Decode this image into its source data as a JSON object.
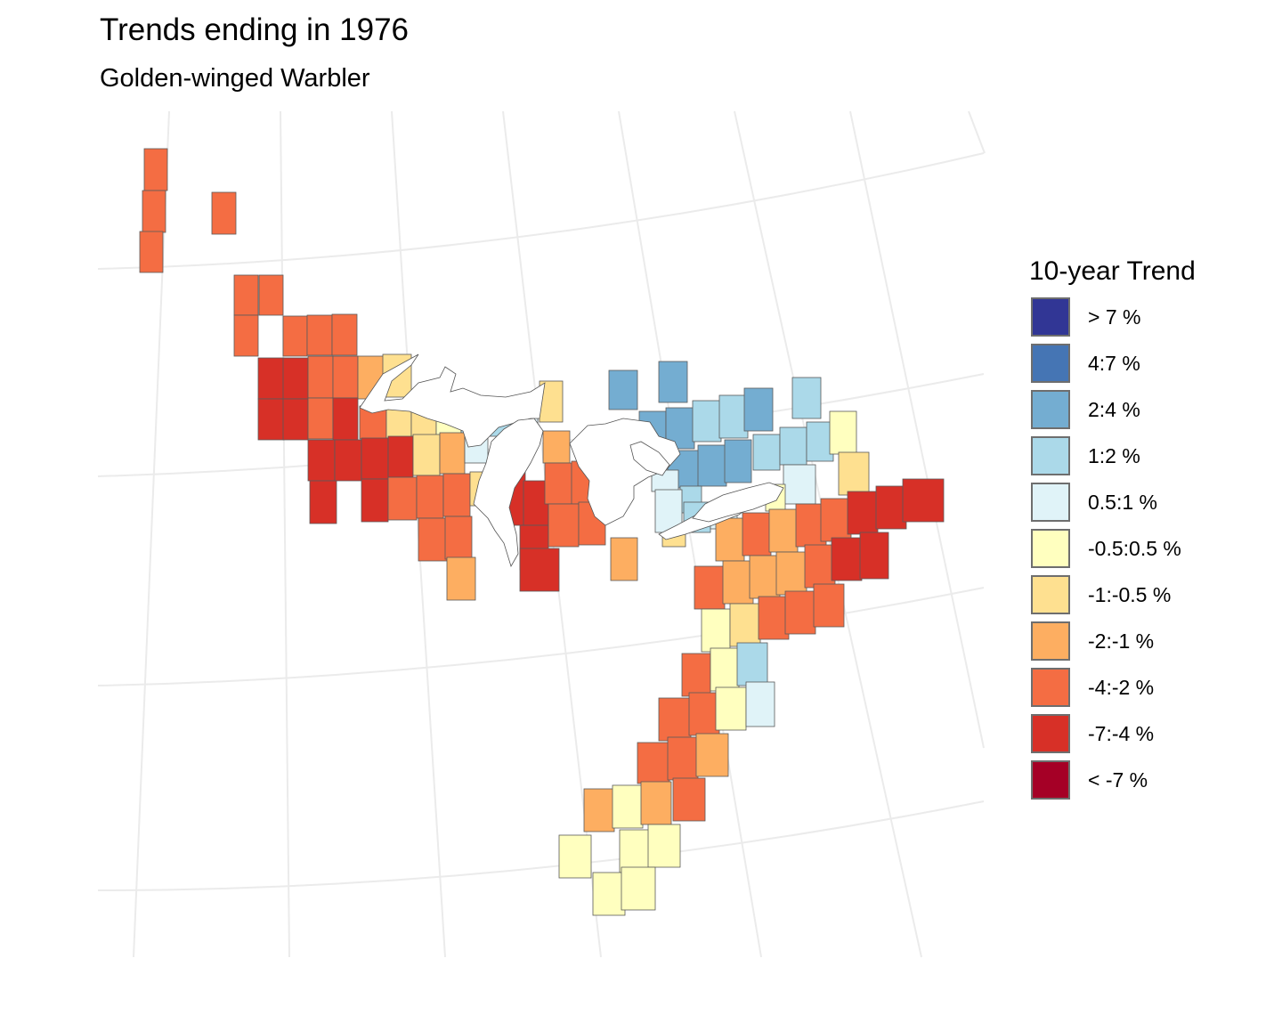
{
  "title": "Trends ending in 1976",
  "subtitle": "Golden-winged Warbler",
  "legend": {
    "title": "10-year Trend",
    "items": [
      {
        "key": "c1",
        "label": "> 7 %",
        "color": "#313695"
      },
      {
        "key": "c2",
        "label": "4:7 %",
        "color": "#4575b4"
      },
      {
        "key": "c3",
        "label": "2:4 %",
        "color": "#74add1"
      },
      {
        "key": "c4",
        "label": "1:2 %",
        "color": "#abd9e9"
      },
      {
        "key": "c5",
        "label": "0.5:1 %",
        "color": "#e0f3f8"
      },
      {
        "key": "c6",
        "label": "-0.5:0.5 %",
        "color": "#ffffbf"
      },
      {
        "key": "c7",
        "label": "-1:-0.5 %",
        "color": "#fee090"
      },
      {
        "key": "c8",
        "label": "-2:-1 %",
        "color": "#fdae61"
      },
      {
        "key": "c9",
        "label": "-4:-2 %",
        "color": "#f46d43"
      },
      {
        "key": "c10",
        "label": "-7:-4 %",
        "color": "#d73027"
      },
      {
        "key": "c11",
        "label": "< -7 %",
        "color": "#a50026"
      }
    ]
  }
}
